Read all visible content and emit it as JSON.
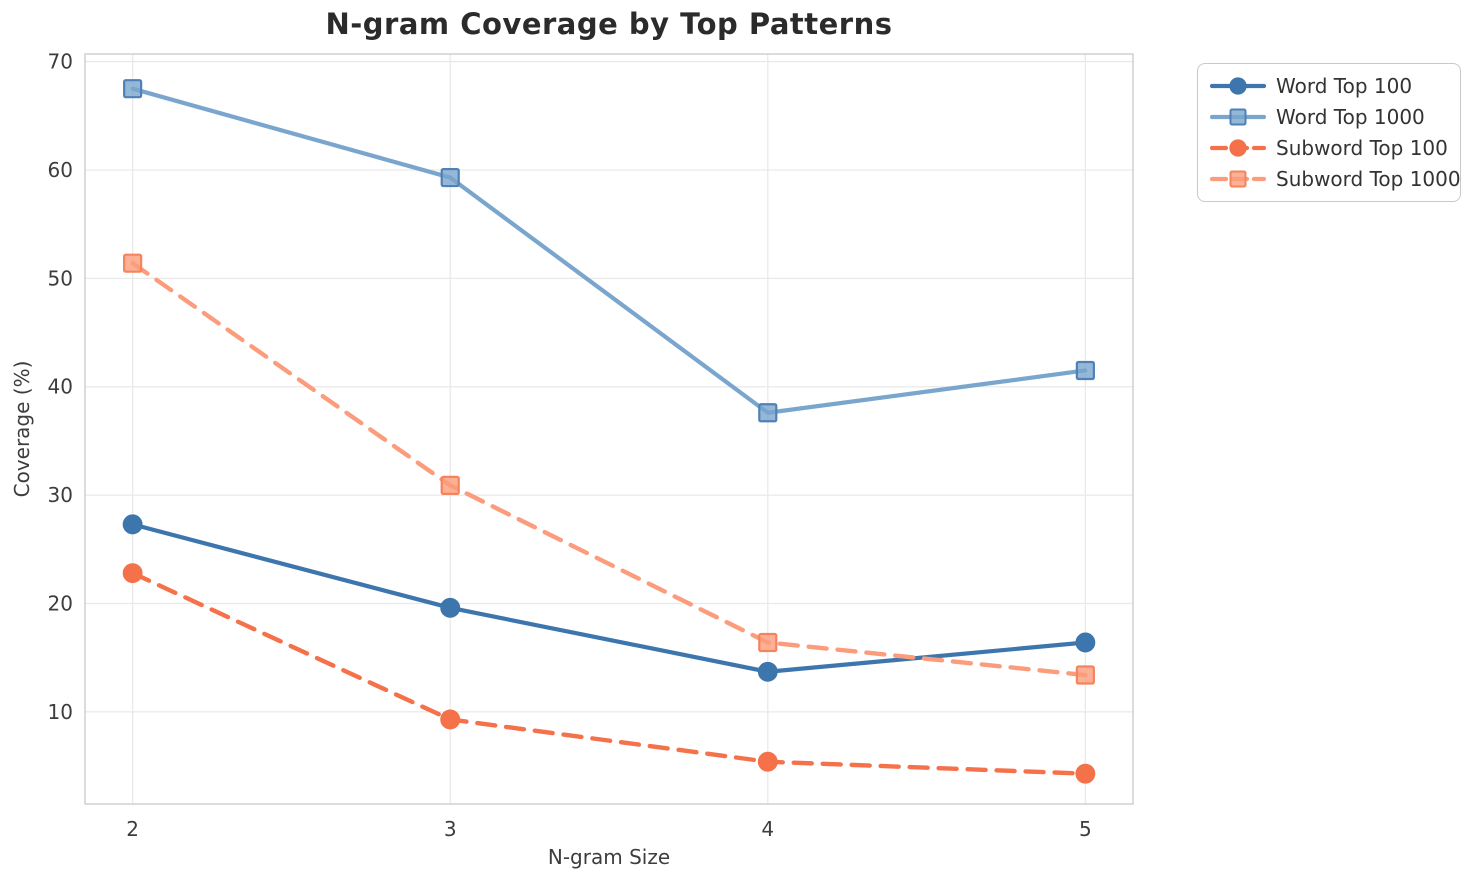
{
  "chart_data": {
    "type": "line",
    "title": "N-gram Coverage by Top Patterns",
    "xlabel": "N-gram Size",
    "ylabel": "Coverage (%)",
    "x": [
      2,
      3,
      4,
      5
    ],
    "xtick_labels": [
      "2",
      "3",
      "4",
      "5"
    ],
    "ytick_values": [
      10,
      20,
      30,
      40,
      50,
      60,
      70
    ],
    "ytick_labels": [
      "10",
      "20",
      "30",
      "40",
      "50",
      "60",
      "70"
    ],
    "xlim": [
      1.85,
      5.15
    ],
    "ylim": [
      1.5,
      70.7
    ],
    "grid": true,
    "legend_position": "outside-upper-right",
    "series": [
      {
        "name": "Word Top 100",
        "values": [
          27.3,
          19.6,
          13.7,
          16.4
        ],
        "color": "#3c76ad",
        "marker_edge": "#3c76ad",
        "marker": "circle",
        "linestyle": "solid"
      },
      {
        "name": "Word Top 1000",
        "values": [
          67.5,
          59.3,
          37.6,
          41.5
        ],
        "color": "#7aa6ce",
        "marker_edge": "#4f81b6",
        "marker": "square",
        "linestyle": "solid"
      },
      {
        "name": "Subword Top 100",
        "values": [
          22.8,
          9.3,
          5.4,
          4.3
        ],
        "color": "#f5714a",
        "marker_edge": "#f5714a",
        "marker": "circle",
        "linestyle": "dashed"
      },
      {
        "name": "Subword Top 1000",
        "values": [
          51.4,
          30.9,
          16.4,
          13.4
        ],
        "color": "#fb9c7c",
        "marker_edge": "#f5845c",
        "marker": "square",
        "linestyle": "dashed"
      }
    ],
    "styles": {
      "grid_color": "#e9e9e9",
      "spine_color": "#cdcdcd",
      "tick_label_color": "#3d3d3d",
      "title_color": "#2b2b2b",
      "background": "#ffffff"
    }
  }
}
